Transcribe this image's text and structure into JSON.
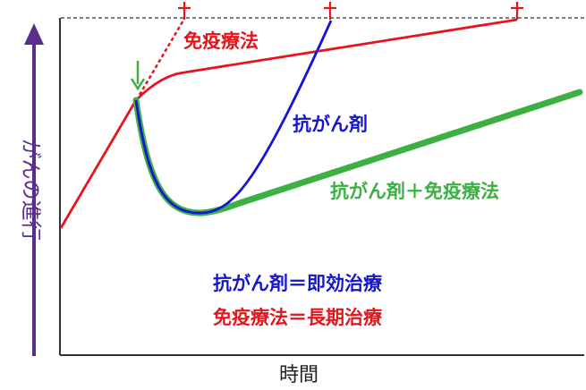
{
  "axes": {
    "y_label": "がんの進行",
    "x_label": "時間"
  },
  "curves": {
    "immunotherapy": {
      "label": "免疫療法",
      "color": "#e8141b"
    },
    "chemotherapy": {
      "label": "抗がん剤",
      "color": "#1515d4"
    },
    "combination": {
      "label": "抗がん剤＋免疫療法",
      "color": "#3cb043"
    }
  },
  "legend": {
    "chemo_line": "抗がん剤＝即効治療",
    "immuno_line": "免疫療法＝長期治療"
  },
  "colors": {
    "axis": "#333333",
    "y_arrow": "#5b2d8e",
    "death_marker": "#e8141b",
    "treatment_start_arrow": "#3cb043"
  },
  "markers": {
    "death_marker_icon": "cross-icon",
    "treatment_start_icon": "down-arrow-icon"
  }
}
